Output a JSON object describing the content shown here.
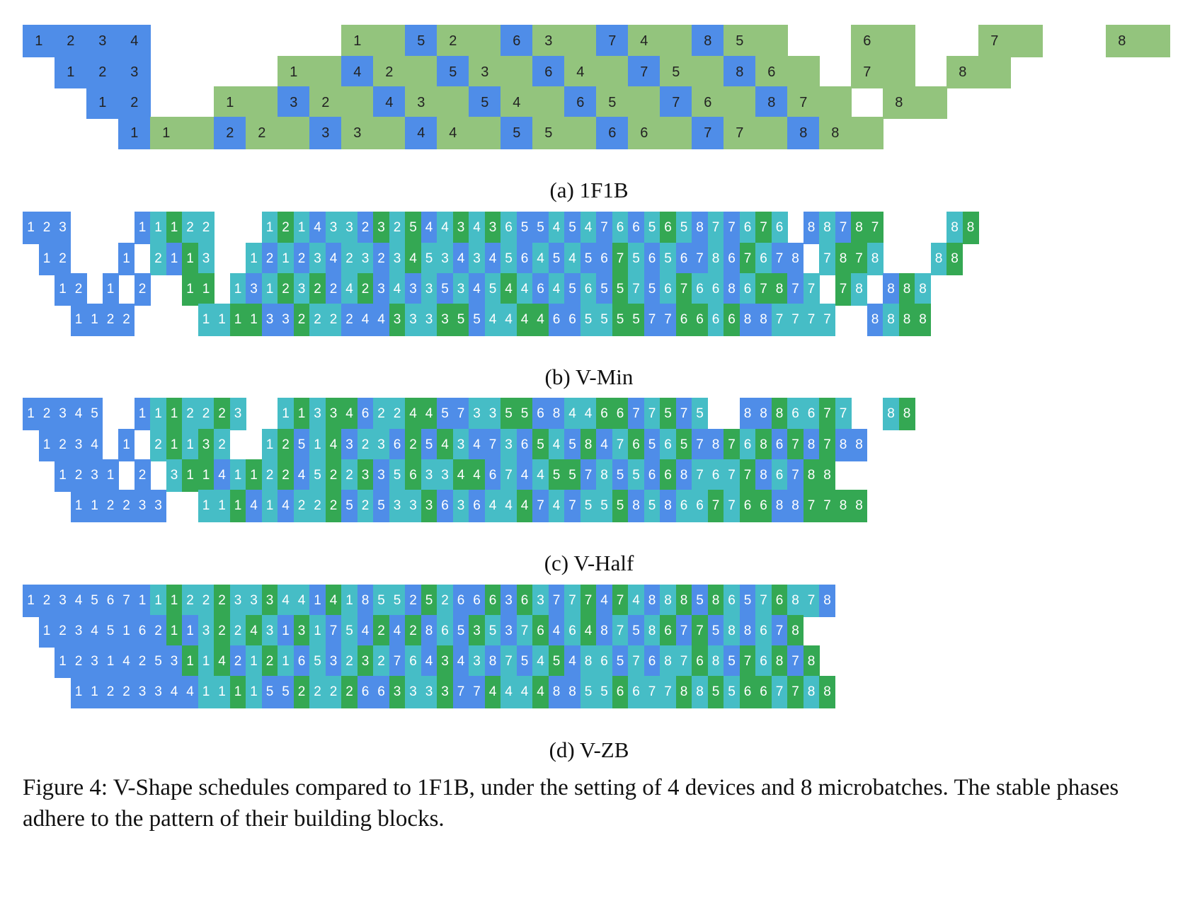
{
  "colors": {
    "blue": "#4f8de8",
    "green": "#93c47d",
    "teal": "#46bdc6",
    "darkgreen": "#34a853",
    "text_dark": "#222222",
    "text_light": "#ffffff"
  },
  "panels": [
    {
      "key": "a",
      "caption": "(a) 1F1B",
      "rows": [
        "B1 B2 B3 B4 . . . . . . G1 G B5 G2 G B6 G3 G B7 G4 G B8 G5 G . . G6 G . . G7 G . . G8 G",
        ". B1 B2 B3 . . . . G1 G B4 G2 G B5 G3 G B6 G4 G B7 G5 G B8 G6 G . G7 G . G8 G",
        ". . B1 B2 . . G1 G B3 G2 G B4 G3 G B5 G4 G B6 G5 G B7 G6 G B8 G7 G . G8 G",
        ". . . B1 G1 G B2 G2 G B3 G3 G B4 G4 G B5 G5 G B6 G6 G B7 G7 G B8 G8 G"
      ]
    },
    {
      "key": "b",
      "caption": "(b) V-Min",
      "rows": [
        "B1 B2 B3 . . . . B1 T1 D1 T2 T2 . . . T1 D2 T1 B4 T3 T3 B2 D3 T2 D5 B4 T4 D3 T4 D3 T6 B5 B5 T4 B5 T4 B7 T6 B6 T5 D6 T5 B8 T7 B7 T6 D7 T6 . B8 T8 B7 D8 D7 . . . . T8 D8",
        ". B1 B2 . . . B1 . T2 B1 D1 T3 . . T1 B2 T1 B2 T3 B4 T2 T3 B2 T3 D4 T5 T3 B4 T3 B4 T5 B6 T4 B5 T4 B5 B6 D7 T5 B6 T5 B6 B7 T8 B6 D7 T6 B7 B8 . T7 D8 D7 T8 . . . T8 D8",
        ". . B1 B2 . B1 . B2 . . D1 D1 . T1 B3 T1 D2 T3 D2 B2 T4 D2 B3 T4 B3 T3 B5 T3 B4 T5 D4 T4 B6 T4 B5 T6 B5 D5 T7 B5 T6 D7 T6 T6 B8 T6 D7 D8 B7 T7 . D7 T8 . B8 D8 T8",
        ". . . B1 B1 B2 B2 . . . . T1 T1 D1 D1 B3 B3 D2 T2 T2 B2 B4 B4 D3 T3 T3 D3 D5 B5 T4 T4 D4 D4 B6 B6 T5 T5 D5 D5 B7 B7 D6 D6 T6 D6 B8 B8 T7 T7 T7 T7 . . B8 T8 D8 D8"
      ]
    },
    {
      "key": "c",
      "caption": "(c) V-Half",
      "rows": [
        "B1 B2 B3 B4 B5 . . B1 T1 D1 T2 T2 D2 T3 . . T1 D1 T3 D3 D4 B6 T2 T2 D4 D4 B5 B7 T3 T3 D5 D5 B6 B8 T4 T4 D6 D6 B7 T7 D5 B7 T5 . . B8 B8 D8 T6 T6 D7 T7 . . T8 D8",
        ". B1 B2 B3 B4 . B1 . T2 D1 T1 D3 T2 . . T1 D2 B5 T1 D4 B3 T2 T3 B6 D2 B5 D4 T3 B4 B7 T3 B6 D5 T4 B5 D8 B4 T7 D6 B5 T6 D5 B7 B8 D7 T6 D8 B6 D7 B8 D7 B8 B8",
        ". . B1 B2 B3 B1 . B2 . T3 D1 D1 B4 T1 D1 T2 D2 B4 T5 D2 T2 D3 B3 T5 D6 T3 T3 D4 D4 B6 T7 B4 T4 D5 D5 B7 T8 B5 T5 B6 D6 B8 T7 T6 T7 D7 B8 T6 B7 D8 D8",
        ". . . B1 B1 B2 B2 B3 B3 . . T1 T1 D1 B4 T1 B4 T2 T2 D2 B5 T2 B5 T3 T3 D3 B6 T3 B6 T4 T4 D4 B7 T4 B7 T5 T5 D5 B8 T5 B8 T6 T6 D7 T7 D6 D6 B8 B8 D7 D7 D8 D8"
      ]
    },
    {
      "key": "d",
      "caption": "(d) V-ZB",
      "rows": [
        "B1 B2 B3 B4 B5 B6 B7 B1 T1 D1 T2 T2 D2 T3 T3 D3 T4 T4 B1 D4 T1 B8 T5 T5 B2 D5 T2 B6 B6 D6 B3 D6 T3 B7 T7 D7 B4 D7 T4 B8 T8 D8 B5 D8 T6 B5 T7 D6 T8 T7 B8",
        ". B1 B2 B3 B4 B5 B1 B6 B2 D1 B1 T3 D2 T2 D4 T3 B1 D3 T1 B7 T5 B4 D2 B4 D2 B8 T6 B5 D3 T5 B3 T7 D6 B4 T6 D4 B8 T7 B5 T8 D6 B7 D7 B5 T8 B8 T6 B7 D8",
        ". . B1 B2 B3 B1 B4 B2 B5 B3 D1 T1 D4 B2 T1 D2 T1 B6 T5 B3 T2 D3 T2 B7 T6 B4 D3 B4 T3 B8 T7 B5 T4 D5 B4 T8 T6 B5 T7 B6 T8 T7 D6 T8 B5 D7 T6 D8 B7 D8",
        ". . . B1 B1 B2 B2 B3 B3 B4 B4 T1 T1 D1 T1 B5 B5 D2 T2 T2 D2 B6 B6 D3 T3 T3 D3 B7 B7 D4 T4 T4 D4 B8 B8 T5 T5 D6 T6 T7 T7 D8 T8 D5 T5 D6 D6 T7 D7 T8 D8"
      ]
    }
  ],
  "figure_caption": "Figure 4: V-Shape schedules compared to 1F1B, under the setting of 4 devices and 8 microbatches. The stable phases adhere to the pattern of their building blocks."
}
